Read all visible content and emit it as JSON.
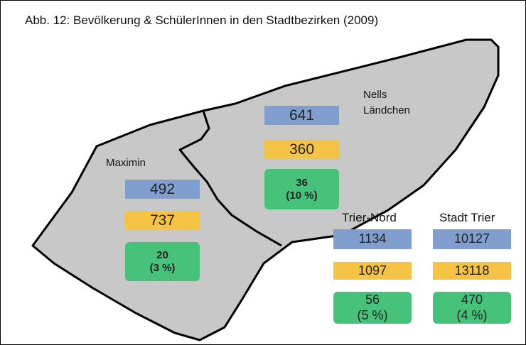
{
  "title": "Abb. 12: Bevölkerung & SchülerInnen in den Stadtbezirken (2009)",
  "districts": [
    {
      "name": "Maximin",
      "blue": "492",
      "yellow": "737",
      "green": "20",
      "green_share": "(3 %)"
    },
    {
      "name": "Nells Ländchen",
      "blue": "641",
      "yellow": "360",
      "green": "36",
      "green_share": "(10 %)"
    },
    {
      "name": "Trier-Nord",
      "blue": "1134",
      "yellow": "1097",
      "green": "56",
      "green_share": "(5 %)"
    },
    {
      "name": "Stadt Trier",
      "blue": "10127",
      "yellow": "13118",
      "green": "470",
      "green_share": "(4 %)"
    }
  ]
}
